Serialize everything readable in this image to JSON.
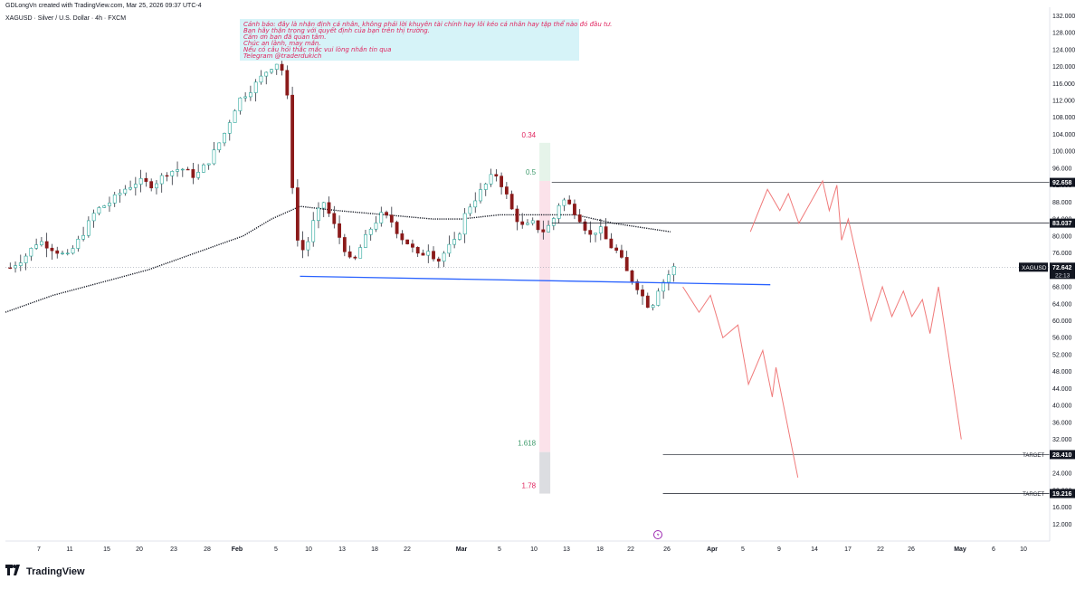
{
  "header": {
    "created_by": "GDLongVn created with TradingView.com, Mar 25, 2026 09:37 UTC-4",
    "symbol_line": "XAGUSD · Silver / U.S. Dollar · 4h · FXCM"
  },
  "note": {
    "lines": [
      "Cảnh báo: đây là nhận định cá nhân, không phải lời khuyên tài chính hay lôi kéo cá nhân hay tập thể nào đó đầu tư.",
      "Bạn hãy thận trọng với quyết định của bạn trên thị trường.",
      "Cảm ơn bạn đã quan tâm.",
      "Chúc an lành, may mắn.",
      "Nếu có câu hỏi thắc mắc vui lòng nhắn tin qua",
      "Telegram @traderdukich"
    ]
  },
  "footer": {
    "brand": "TradingView"
  },
  "colors": {
    "up": "#26a69a",
    "down": "#8b1a1a",
    "trendline": "#2962ff",
    "projection": "#f07a7a",
    "fib_red": "#e0245e",
    "fib_green": "#3d9a6b",
    "hline": "#131722"
  },
  "chart_data": {
    "type": "candlestick",
    "symbol": "XAGUSD",
    "timeframe": "4h",
    "ylim": [
      8,
      134
    ],
    "y_ticks": [
      "12.000",
      "16.000",
      "20.000",
      "24.000",
      "28.000",
      "32.000",
      "36.000",
      "40.000",
      "44.000",
      "48.000",
      "52.000",
      "56.000",
      "60.000",
      "64.000",
      "68.000",
      "72.000",
      "76.000",
      "80.000",
      "84.000",
      "88.000",
      "92.000",
      "96.000",
      "100.000",
      "104.000",
      "108.000",
      "112.000",
      "116.000",
      "120.000",
      "124.000",
      "128.000",
      "132.000"
    ],
    "x_ticks": [
      "7",
      "11",
      "15",
      "20",
      "23",
      "28",
      "Feb",
      "5",
      "10",
      "13",
      "18",
      "22",
      "Mar",
      "5",
      "10",
      "13",
      "18",
      "22",
      "26",
      "Apr",
      "5",
      "9",
      "14",
      "17",
      "22",
      "26",
      "May",
      "6",
      "10"
    ],
    "price_path": [
      [
        0.5,
        72.5
      ],
      [
        2,
        75
      ],
      [
        3.5,
        79
      ],
      [
        5,
        77
      ],
      [
        6.5,
        75
      ],
      [
        8,
        80
      ],
      [
        9.5,
        86
      ],
      [
        11,
        88
      ],
      [
        12.5,
        91
      ],
      [
        14,
        93
      ],
      [
        15.5,
        92
      ],
      [
        17,
        95
      ],
      [
        18.5,
        96
      ],
      [
        20,
        94
      ],
      [
        21.5,
        98
      ],
      [
        23,
        104
      ],
      [
        24.5,
        112
      ],
      [
        26,
        115
      ],
      [
        27.5,
        119
      ],
      [
        28.5,
        121
      ],
      [
        29.5,
        118
      ],
      [
        30,
        100
      ],
      [
        30.5,
        80
      ],
      [
        31.5,
        76
      ],
      [
        32.5,
        84
      ],
      [
        33.5,
        88
      ],
      [
        34.5,
        83
      ],
      [
        35.5,
        78
      ],
      [
        36.5,
        73
      ],
      [
        37.5,
        78
      ],
      [
        38.5,
        82
      ],
      [
        39.5,
        85
      ],
      [
        40.5,
        84
      ],
      [
        41.5,
        80
      ],
      [
        42.5,
        78
      ],
      [
        43.5,
        75
      ],
      [
        44.5,
        77
      ],
      [
        45.5,
        74
      ],
      [
        46.5,
        77
      ],
      [
        47.5,
        79
      ],
      [
        48.5,
        86
      ],
      [
        49.5,
        89
      ],
      [
        50.5,
        92
      ],
      [
        51.5,
        95
      ],
      [
        52.5,
        91
      ],
      [
        53.5,
        85
      ],
      [
        54.5,
        82
      ],
      [
        55.5,
        83
      ],
      [
        56.5,
        81
      ],
      [
        57.5,
        83
      ],
      [
        58.5,
        89
      ],
      [
        59.5,
        87
      ],
      [
        60.5,
        84
      ],
      [
        61.5,
        80
      ],
      [
        62.5,
        82
      ],
      [
        63.5,
        78
      ],
      [
        64.5,
        76
      ],
      [
        65.5,
        71
      ],
      [
        66.5,
        68
      ],
      [
        67.5,
        64
      ],
      [
        68,
        63
      ],
      [
        68.5,
        67
      ],
      [
        69.5,
        70
      ],
      [
        70.5,
        73
      ],
      [
        70.8,
        72.6
      ]
    ],
    "moving_average": [
      [
        0,
        62
      ],
      [
        5,
        66
      ],
      [
        10,
        69
      ],
      [
        15,
        72
      ],
      [
        20,
        76
      ],
      [
        25,
        80
      ],
      [
        28,
        84
      ],
      [
        31,
        87
      ],
      [
        35,
        86
      ],
      [
        40,
        85
      ],
      [
        45,
        84
      ],
      [
        48,
        84
      ],
      [
        52,
        85
      ],
      [
        56,
        85
      ],
      [
        60,
        85
      ],
      [
        64,
        83
      ],
      [
        67,
        82
      ],
      [
        70,
        81
      ]
    ],
    "projection_path_1": [
      [
        71.3,
        68
      ],
      [
        73,
        62
      ],
      [
        74.2,
        66
      ],
      [
        75.5,
        56
      ],
      [
        77.1,
        59
      ],
      [
        78.2,
        45
      ],
      [
        79.7,
        53
      ],
      [
        80.7,
        42
      ],
      [
        81.1,
        49
      ],
      [
        83.4,
        23
      ]
    ],
    "projection_path_2": [
      [
        78.4,
        81
      ],
      [
        80.2,
        91
      ],
      [
        81.5,
        86
      ],
      [
        82.4,
        90
      ],
      [
        83.5,
        83
      ],
      [
        86,
        93
      ],
      [
        86.7,
        86
      ],
      [
        87.5,
        92
      ],
      [
        88,
        79
      ],
      [
        88.7,
        84
      ],
      [
        91.1,
        60
      ],
      [
        92.3,
        68
      ],
      [
        93.3,
        61
      ],
      [
        94.5,
        67
      ],
      [
        95.4,
        61
      ],
      [
        96.5,
        65
      ],
      [
        97.3,
        57
      ],
      [
        98.2,
        68
      ],
      [
        100.6,
        32
      ]
    ],
    "trendline": {
      "from": [
        31,
        70.5
      ],
      "to": [
        80.5,
        68.5
      ]
    },
    "horizontal_levels": [
      {
        "price": 92.658,
        "label": "92.658"
      },
      {
        "price": 83.037,
        "label": "83.037"
      },
      {
        "price": 28.41,
        "label": "28.410",
        "tag": "TARGET"
      },
      {
        "price": 19.216,
        "label": "19.216",
        "tag": "TARGET"
      }
    ],
    "current_price": {
      "label": "XAGUSD",
      "value": "72.642",
      "countdown": "22:13"
    },
    "fib_levels": [
      {
        "ratio": "0.34",
        "price": 102
      },
      {
        "ratio": "0.5",
        "price": 93
      },
      {
        "ratio": "1.618",
        "price": 29
      },
      {
        "ratio": "1.78",
        "price": 19.2
      }
    ]
  }
}
